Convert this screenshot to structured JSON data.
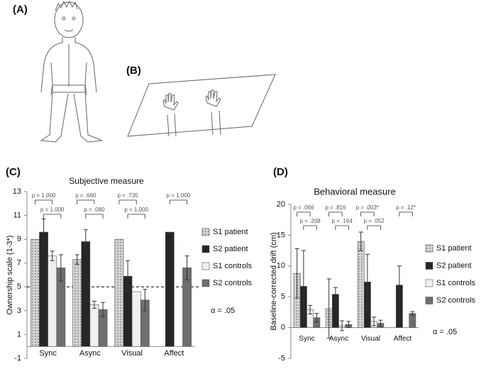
{
  "panels": [
    "(A)",
    "(B)",
    "(C)",
    "(D)"
  ],
  "chart_data": [
    {
      "type": "bar",
      "title": "Subjective measure",
      "y_label": "Ownership scale (1-3*)",
      "categories": [
        "Sync",
        "Async",
        "Visual",
        "Affect"
      ],
      "series": [
        {
          "name": "S1 patient",
          "color": "#d4d4d4",
          "pattern": "dots",
          "values": [
            9.0,
            7.3,
            9.0,
            null
          ],
          "errors": [
            null,
            0.4,
            null,
            null
          ]
        },
        {
          "name": "S2 patient",
          "color": "#262626",
          "values": [
            9.6,
            8.8,
            5.9,
            9.6
          ],
          "errors": [
            1.1,
            1.0,
            1.3,
            null
          ]
        },
        {
          "name": "S1 controls",
          "color": "#f0f0f0",
          "values": [
            7.6,
            3.5,
            4.6,
            null
          ],
          "errors": [
            0.4,
            0.3,
            null,
            null
          ]
        },
        {
          "name": "S2 controls",
          "color": "#6e6e6e",
          "values": [
            6.6,
            3.1,
            3.9,
            6.6
          ],
          "errors": [
            1.1,
            0.6,
            0.9,
            1.0
          ]
        }
      ],
      "ylim": [
        -1,
        13
      ],
      "yticks": [
        -1,
        1,
        3,
        5,
        7,
        9,
        11,
        13
      ],
      "reference_line": 5,
      "annotations": [
        "p = 1.000",
        "p = 1.000",
        "p = .660",
        "p = .080",
        "p = .735",
        "p = 1.000",
        "p = 1.000"
      ],
      "alpha": "α = .05"
    },
    {
      "type": "bar",
      "title": "Behavioral measure",
      "y_label": "Baseline-corrected drift (cm)",
      "categories": [
        "Sync",
        "Async",
        "Visual",
        "Affect"
      ],
      "series": [
        {
          "name": "S1 patient",
          "color": "#d4d4d4",
          "pattern": "dots",
          "values": [
            8.8,
            3.1,
            14.0,
            null
          ],
          "errors": [
            4.0,
            4.8,
            1.5,
            null
          ]
        },
        {
          "name": "S2 patient",
          "color": "#262626",
          "values": [
            6.7,
            5.4,
            7.4,
            6.9
          ],
          "errors": [
            5.8,
            1.1,
            4.5,
            3.1
          ]
        },
        {
          "name": "S1 controls",
          "color": "#f0f0f0",
          "values": [
            2.9,
            0.3,
            1.0,
            null
          ],
          "errors": [
            0.7,
            0.8,
            0.7,
            null
          ]
        },
        {
          "name": "S2 controls",
          "color": "#6e6e6e",
          "values": [
            1.6,
            0.5,
            0.7,
            2.3
          ],
          "errors": [
            0.7,
            0.5,
            0.5,
            0.3
          ]
        }
      ],
      "ylim": [
        -5,
        20
      ],
      "yticks": [
        -5,
        0,
        5,
        10,
        15,
        20
      ],
      "annotations": [
        "p = .066",
        "p = .208",
        "p = .816",
        "p = .164",
        "p = .003*",
        "p = .052",
        "p = .12*"
      ],
      "alpha": "α = .05"
    }
  ]
}
